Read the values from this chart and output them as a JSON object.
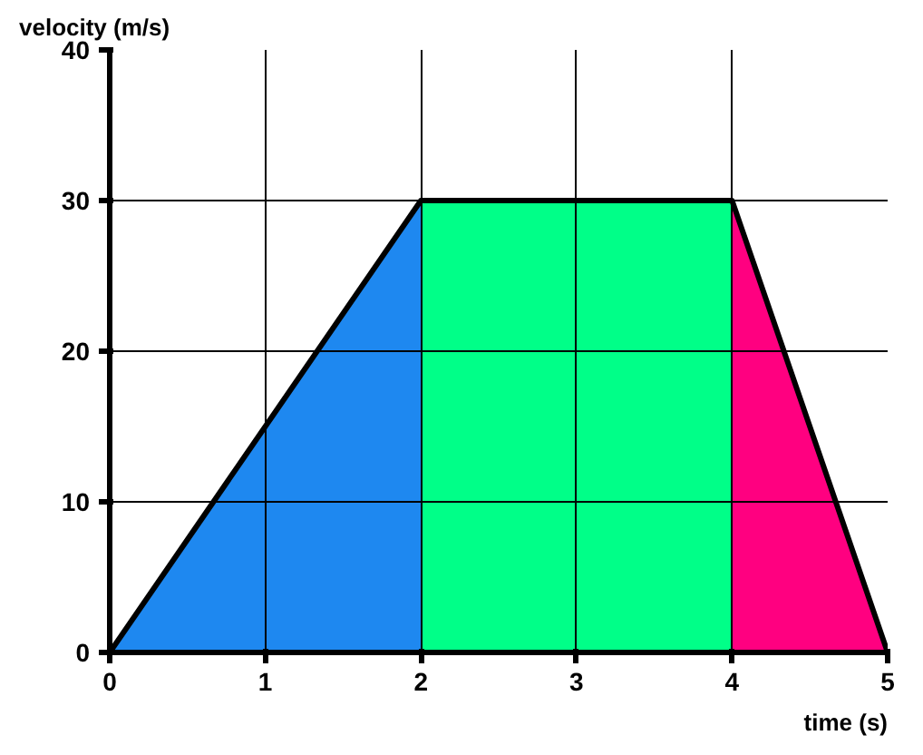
{
  "chart_data": {
    "type": "area",
    "xlabel": "time (s)",
    "ylabel": "velocity (m/s)",
    "xlim": [
      0,
      5
    ],
    "ylim": [
      0,
      40
    ],
    "xticks": [
      0,
      1,
      2,
      3,
      4,
      5
    ],
    "yticks": [
      0,
      10,
      20,
      30,
      40
    ],
    "grid": true,
    "series": [
      {
        "color": "#1e88f0",
        "x": [
          0,
          2
        ],
        "values": [
          0,
          30
        ]
      },
      {
        "color": "#00ff88",
        "x": [
          2,
          4
        ],
        "values": [
          30,
          30
        ]
      },
      {
        "color": "#ff0080",
        "x": [
          4,
          5
        ],
        "values": [
          30,
          0
        ]
      },
      {
        "type": "line",
        "color": "#000000",
        "x": [
          0,
          2,
          4,
          5
        ],
        "values": [
          0,
          30,
          30,
          0
        ]
      }
    ]
  }
}
